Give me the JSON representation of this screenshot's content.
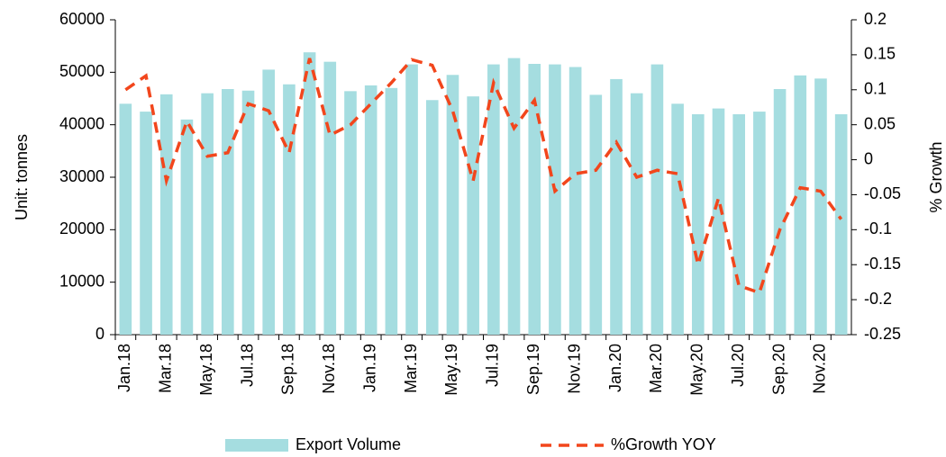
{
  "chart_data": {
    "type": "bar-line",
    "categories": [
      "Jan.18",
      null,
      "Mar.18",
      null,
      "May.18",
      null,
      "Jul.18",
      null,
      "Sep.18",
      null,
      "Nov.18",
      null,
      "Jan.19",
      null,
      "Mar.19",
      null,
      "May.19",
      null,
      "Jul.19",
      null,
      "Sep.19",
      null,
      "Nov.19",
      null,
      "Jan.20",
      null,
      "Mar.20",
      null,
      "May.20",
      null,
      "Jul.20",
      null,
      "Sep.20",
      null,
      "Nov.20",
      null
    ],
    "series": [
      {
        "name": "Export Volume",
        "color": "#a5dde0",
        "values": [
          44000,
          42500,
          45800,
          41000,
          46000,
          46800,
          46500,
          50500,
          47700,
          53800,
          52000,
          46400,
          47500,
          47000,
          51500,
          44700,
          49500,
          45400,
          51500,
          52700,
          51600,
          51500,
          51000,
          45700,
          48700,
          46000,
          51500,
          44000,
          42000,
          43100,
          42000,
          42500,
          46800,
          49400,
          48800,
          42000
        ]
      },
      {
        "name": "%Growth YOY",
        "color": "#f2461c",
        "axis": "y2",
        "values": [
          0.1,
          0.12,
          -0.03,
          0.055,
          0.005,
          0.01,
          0.08,
          0.07,
          0.01,
          0.145,
          0.035,
          0.05,
          0.08,
          0.11,
          0.143,
          0.135,
          0.07,
          -0.03,
          0.11,
          0.045,
          0.085,
          -0.045,
          -0.02,
          -0.015,
          0.025,
          -0.025,
          -0.015,
          -0.02,
          -0.15,
          -0.055,
          -0.18,
          -0.19,
          -0.1,
          -0.04,
          -0.045,
          -0.085
        ]
      }
    ],
    "y_label": "Unit: tonnes",
    "y2_label": "% Growth",
    "ylim": [
      0,
      60000
    ],
    "yticks": [
      0,
      10000,
      20000,
      30000,
      40000,
      50000,
      60000
    ],
    "y2lim": [
      -0.25,
      0.2
    ],
    "y2ticks": [
      -0.25,
      -0.2,
      -0.15,
      -0.1,
      -0.05,
      0,
      0.05,
      0.1,
      0.15,
      0.2
    ],
    "legend": "bottom"
  }
}
